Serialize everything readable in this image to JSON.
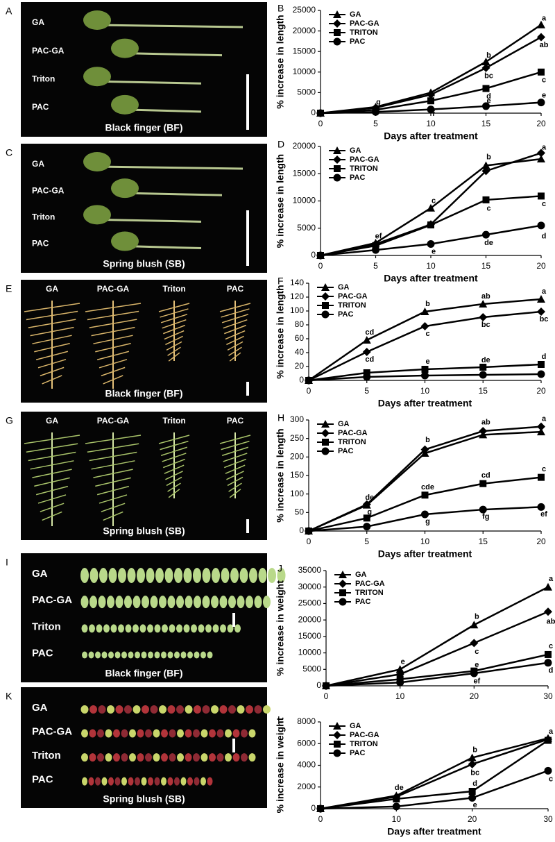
{
  "panels": [
    {
      "letter": "A",
      "labels": [
        "GA",
        "PAC-GA",
        "Triton",
        "PAC"
      ],
      "caption": "Black finger (BF)"
    },
    {
      "letter": "C",
      "labels": [
        "GA",
        "PAC-GA",
        "Triton",
        "PAC"
      ],
      "caption": "Spring blush (SB)"
    },
    {
      "letter": "E",
      "labels": [
        "GA",
        "PAC-GA",
        "Triton",
        "PAC"
      ],
      "caption": "Black finger (BF)"
    },
    {
      "letter": "G",
      "labels": [
        "GA",
        "PAC-GA",
        "Triton",
        "PAC"
      ],
      "caption": "Spring blush (SB)"
    },
    {
      "letter": "I",
      "labels": [
        "GA",
        "PAC-GA",
        "Triton",
        "PAC"
      ],
      "caption": "Black finger (BF)"
    },
    {
      "letter": "K",
      "labels": [
        "GA",
        "PAC-GA",
        "Triton",
        "PAC"
      ],
      "caption": "Spring blush (SB)"
    }
  ],
  "chart_data": [
    {
      "type": "line",
      "panel": "B",
      "ylabel": "% increase in length",
      "xlabel": "Days after treatment",
      "legend": "upper left",
      "x": [
        0,
        5,
        10,
        15,
        20
      ],
      "xlim": [
        0,
        20
      ],
      "xticks": [
        0,
        5,
        10,
        15,
        20
      ],
      "ylim": [
        0,
        25000
      ],
      "yticks": [
        0,
        5000,
        10000,
        15000,
        20000,
        25000
      ],
      "series": [
        {
          "name": "GA",
          "color": "#000000",
          "marker": "triangle",
          "values": [
            0,
            1500,
            5000,
            12500,
            21500
          ]
        },
        {
          "name": "PAC-GA",
          "color": "#000000",
          "marker": "diamond",
          "values": [
            0,
            1300,
            4500,
            11000,
            18500
          ]
        },
        {
          "name": "TRITON",
          "color": "#000000",
          "marker": "square",
          "values": [
            0,
            800,
            3000,
            6000,
            10000
          ]
        },
        {
          "name": "PAC",
          "color": "#000000",
          "marker": "circle",
          "values": [
            0,
            300,
            900,
            1700,
            2600
          ]
        }
      ],
      "annotations": [
        {
          "text": "a",
          "x": 20,
          "y": 23000
        },
        {
          "text": "ab",
          "x": 20,
          "y": 16500
        },
        {
          "text": "b",
          "x": 15,
          "y": 14000
        },
        {
          "text": "bc",
          "x": 15,
          "y": 9000
        },
        {
          "text": "c",
          "x": 20,
          "y": 8000
        },
        {
          "text": "d",
          "x": 15,
          "y": 4000
        },
        {
          "text": "e",
          "x": 15,
          "y": 2900
        },
        {
          "text": "e",
          "x": 20,
          "y": 4300
        },
        {
          "text": "g",
          "x": 5,
          "y": 2600
        },
        {
          "text": "f",
          "x": 10,
          "y": -200
        }
      ]
    },
    {
      "type": "line",
      "panel": "D",
      "ylabel": "% increase in length",
      "xlabel": "Days after treatment",
      "legend": "upper left",
      "x": [
        0,
        5,
        10,
        15,
        20
      ],
      "xlim": [
        0,
        20
      ],
      "xticks": [
        0,
        5,
        10,
        15,
        20
      ],
      "ylim": [
        0,
        20000
      ],
      "yticks": [
        0,
        5000,
        10000,
        15000,
        20000
      ],
      "series": [
        {
          "name": "GA",
          "color": "#000000",
          "marker": "triangle",
          "values": [
            0,
            2300,
            8700,
            16500,
            17700
          ]
        },
        {
          "name": "PAC-GA",
          "color": "#000000",
          "marker": "diamond",
          "values": [
            0,
            2100,
            5700,
            15500,
            18800
          ]
        },
        {
          "name": "TRITON",
          "color": "#000000",
          "marker": "square",
          "values": [
            0,
            1800,
            5600,
            10200,
            10900
          ]
        },
        {
          "name": "PAC",
          "color": "#000000",
          "marker": "circle",
          "values": [
            0,
            1000,
            2100,
            3800,
            5500
          ]
        }
      ],
      "annotations": [
        {
          "text": "ef",
          "x": 5,
          "y": 3500
        },
        {
          "text": "c",
          "x": 10,
          "y": 10000
        },
        {
          "text": "b",
          "x": 15,
          "y": 18000
        },
        {
          "text": "a",
          "x": 20,
          "y": 19800
        },
        {
          "text": "c",
          "x": 15,
          "y": 8600
        },
        {
          "text": "c",
          "x": 20,
          "y": 9400
        },
        {
          "text": "e",
          "x": 10,
          "y": 700
        },
        {
          "text": "de",
          "x": 15,
          "y": 2300
        },
        {
          "text": "d",
          "x": 20,
          "y": 3500
        }
      ]
    },
    {
      "type": "line",
      "panel": "F",
      "ylabel": "% increase in length",
      "xlabel": "Days after treatment",
      "legend": "upper left",
      "x": [
        0,
        5,
        10,
        15,
        20
      ],
      "xlim": [
        0,
        20
      ],
      "xticks": [
        0,
        5,
        10,
        15,
        20
      ],
      "ylim": [
        0,
        140
      ],
      "yticks": [
        0,
        20,
        40,
        60,
        80,
        100,
        120,
        140
      ],
      "series": [
        {
          "name": "GA",
          "color": "#000000",
          "marker": "triangle",
          "values": [
            0,
            58,
            99,
            110,
            117
          ]
        },
        {
          "name": "PAC-GA",
          "color": "#000000",
          "marker": "diamond",
          "values": [
            0,
            41,
            78,
            91,
            99
          ]
        },
        {
          "name": "TRITON",
          "color": "#000000",
          "marker": "square",
          "values": [
            0,
            11,
            16,
            19,
            23
          ]
        },
        {
          "name": "PAC",
          "color": "#000000",
          "marker": "circle",
          "values": [
            0,
            5,
            7,
            8,
            9
          ]
        }
      ],
      "annotations": [
        {
          "text": "cd",
          "x": 5,
          "y": 69
        },
        {
          "text": "cd",
          "x": 5,
          "y": 30
        },
        {
          "text": "b",
          "x": 10,
          "y": 110
        },
        {
          "text": "c",
          "x": 10,
          "y": 67
        },
        {
          "text": "ab",
          "x": 15,
          "y": 121
        },
        {
          "text": "bc",
          "x": 15,
          "y": 80
        },
        {
          "text": "a",
          "x": 20,
          "y": 128
        },
        {
          "text": "bc",
          "x": 20,
          "y": 88
        },
        {
          "text": "e",
          "x": 10,
          "y": 27
        },
        {
          "text": "de",
          "x": 15,
          "y": 29
        },
        {
          "text": "d",
          "x": 20,
          "y": 34
        }
      ]
    },
    {
      "type": "line",
      "panel": "H",
      "ylabel": "% increase in length",
      "xlabel": "Days after treatment",
      "legend": "upper left",
      "x": [
        0,
        5,
        10,
        15,
        20
      ],
      "xlim": [
        0,
        20
      ],
      "xticks": [
        0,
        5,
        10,
        15,
        20
      ],
      "ylim": [
        0,
        300
      ],
      "yticks": [
        0,
        50,
        100,
        150,
        200,
        250,
        300
      ],
      "series": [
        {
          "name": "GA",
          "color": "#000000",
          "marker": "triangle",
          "values": [
            0,
            70,
            210,
            260,
            268
          ]
        },
        {
          "name": "PAC-GA",
          "color": "#000000",
          "marker": "diamond",
          "values": [
            0,
            72,
            220,
            270,
            282
          ]
        },
        {
          "name": "TRITON",
          "color": "#000000",
          "marker": "square",
          "values": [
            0,
            35,
            97,
            128,
            145
          ]
        },
        {
          "name": "PAC",
          "color": "#000000",
          "marker": "circle",
          "values": [
            0,
            12,
            45,
            58,
            65
          ]
        }
      ],
      "annotations": [
        {
          "text": "de",
          "x": 5,
          "y": 90
        },
        {
          "text": "g",
          "x": 5,
          "y": 50
        },
        {
          "text": "b",
          "x": 10,
          "y": 245
        },
        {
          "text": "cde",
          "x": 10,
          "y": 118
        },
        {
          "text": "g",
          "x": 10,
          "y": 25
        },
        {
          "text": "ab",
          "x": 15,
          "y": 293
        },
        {
          "text": "cd",
          "x": 15,
          "y": 150
        },
        {
          "text": "fg",
          "x": 15,
          "y": 38
        },
        {
          "text": "a",
          "x": 20,
          "y": 303
        },
        {
          "text": "c",
          "x": 20,
          "y": 167
        },
        {
          "text": "ef",
          "x": 20,
          "y": 45
        }
      ]
    },
    {
      "type": "line",
      "panel": "J",
      "ylabel": "% increase in weight",
      "legend": "upper left",
      "x": [
        0,
        10,
        20,
        30
      ],
      "xlim": [
        0,
        30
      ],
      "xticks": [
        0,
        10,
        20,
        30
      ],
      "ylim": [
        0,
        35000
      ],
      "yticks": [
        0,
        5000,
        10000,
        15000,
        20000,
        25000,
        30000,
        35000
      ],
      "series": [
        {
          "name": "GA",
          "color": "#000000",
          "marker": "triangle",
          "values": [
            0,
            5000,
            18500,
            30000
          ]
        },
        {
          "name": "PAC-GA",
          "color": "#000000",
          "marker": "diamond",
          "values": [
            0,
            3500,
            13000,
            22500
          ]
        },
        {
          "name": "TRITON",
          "color": "#000000",
          "marker": "square",
          "values": [
            0,
            2000,
            4500,
            9500
          ]
        },
        {
          "name": "PAC",
          "color": "#000000",
          "marker": "circle",
          "values": [
            0,
            1000,
            3800,
            7000
          ]
        }
      ],
      "annotations": [
        {
          "text": "e",
          "x": 10,
          "y": 7300
        },
        {
          "text": "b",
          "x": 20,
          "y": 21000
        },
        {
          "text": "c",
          "x": 20,
          "y": 10300
        },
        {
          "text": "a",
          "x": 30,
          "y": 32500
        },
        {
          "text": "ab",
          "x": 30,
          "y": 19500
        },
        {
          "text": "c",
          "x": 30,
          "y": 12000
        },
        {
          "text": "e",
          "x": 20,
          "y": 6300
        },
        {
          "text": "ef",
          "x": 20,
          "y": 1300
        },
        {
          "text": "d",
          "x": 30,
          "y": 4600
        }
      ]
    },
    {
      "type": "line",
      "panel": "L",
      "ylabel": "% increase in weight",
      "xlabel": "Days after treatment",
      "legend": "upper left",
      "x": [
        0,
        10,
        20,
        30
      ],
      "xlim": [
        0,
        30
      ],
      "xticks": [
        0,
        10,
        20,
        30
      ],
      "ylim": [
        0,
        8000
      ],
      "yticks": [
        0,
        2000,
        4000,
        6000,
        8000
      ],
      "series": [
        {
          "name": "GA",
          "color": "#000000",
          "marker": "triangle",
          "values": [
            0,
            1200,
            4700,
            6500
          ]
        },
        {
          "name": "PAC-GA",
          "color": "#000000",
          "marker": "diamond",
          "values": [
            0,
            1100,
            4100,
            6400
          ]
        },
        {
          "name": "TRITON",
          "color": "#000000",
          "marker": "square",
          "values": [
            0,
            900,
            1600,
            6300
          ]
        },
        {
          "name": "PAC",
          "color": "#000000",
          "marker": "circle",
          "values": [
            0,
            200,
            1000,
            3500
          ]
        }
      ],
      "annotations": [
        {
          "text": "de",
          "x": 10,
          "y": 1900
        },
        {
          "text": "b",
          "x": 20,
          "y": 5400
        },
        {
          "text": "bc",
          "x": 20,
          "y": 3300
        },
        {
          "text": "d",
          "x": 20,
          "y": 2300
        },
        {
          "text": "e",
          "x": 20,
          "y": 300
        },
        {
          "text": "a",
          "x": 30,
          "y": 7100
        },
        {
          "text": "c",
          "x": 30,
          "y": 2700
        }
      ]
    }
  ]
}
